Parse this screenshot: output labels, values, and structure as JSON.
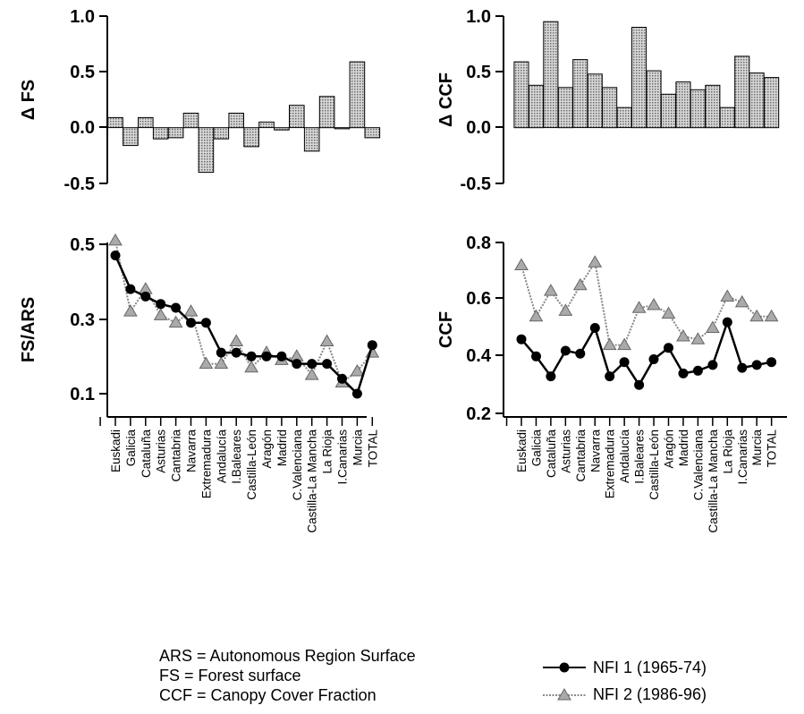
{
  "categories": [
    "Euskadi",
    "Galicia",
    "Cataluña",
    "Asturias",
    "Cantabria",
    "Navarra",
    "Extremadura",
    "Andalucía",
    "I.Baleares",
    "Castilla-León",
    "Aragón",
    "Madrid",
    "C.Valenciana",
    "Castilla-La Mancha",
    "La Rioja",
    "I.Canarias",
    "Murcia",
    "TOTAL"
  ],
  "colors": {
    "ink": "#000000",
    "bar_fill": "#cfcfcf",
    "nfi2_line": "#888888"
  },
  "chart_data": [
    {
      "type": "bar",
      "ylabel": "Δ FS",
      "ylim": [
        -0.5,
        1.0
      ],
      "yticks": [
        "-0.5",
        "0.0",
        "0.5",
        "1.0"
      ],
      "values": [
        0.09,
        -0.16,
        0.09,
        -0.1,
        -0.09,
        0.13,
        -0.4,
        -0.1,
        0.13,
        -0.17,
        0.05,
        -0.02,
        0.2,
        -0.21,
        0.28,
        -0.01,
        0.59,
        -0.09
      ]
    },
    {
      "type": "bar",
      "ylabel": "Δ CCF",
      "ylim": [
        -0.5,
        1.0
      ],
      "yticks": [
        "-0.5",
        "0.0",
        "0.5",
        "1.0"
      ],
      "values": [
        0.59,
        0.38,
        0.95,
        0.36,
        0.61,
        0.48,
        0.36,
        0.18,
        0.9,
        0.51,
        0.3,
        0.41,
        0.34,
        0.38,
        0.18,
        0.64,
        0.49,
        0.45
      ]
    },
    {
      "type": "line",
      "ylabel": "FS/ARS",
      "ylim": [
        0.08,
        0.52
      ],
      "yticks": [
        "0.1",
        "0.3",
        "0.5"
      ],
      "series": [
        {
          "name": "NFI 1 (1965-74)",
          "values": [
            0.47,
            0.38,
            0.36,
            0.34,
            0.33,
            0.29,
            0.29,
            0.21,
            0.21,
            0.2,
            0.2,
            0.2,
            0.18,
            0.18,
            0.18,
            0.14,
            0.1,
            0.23
          ]
        },
        {
          "name": "NFI 2 (1986-96)",
          "values": [
            0.51,
            0.32,
            0.38,
            0.31,
            0.29,
            0.32,
            0.18,
            0.18,
            0.24,
            0.17,
            0.21,
            0.19,
            0.2,
            0.15,
            0.24,
            0.13,
            0.16,
            0.21
          ]
        }
      ]
    },
    {
      "type": "line",
      "ylabel": "CCF",
      "ylim": [
        0.2,
        0.8
      ],
      "yticks": [
        "0.2",
        "0.4",
        "0.6",
        "0.8"
      ],
      "series": [
        {
          "name": "NFI 1 (1965-74)",
          "values": [
            0.46,
            0.4,
            0.33,
            0.42,
            0.41,
            0.5,
            0.33,
            0.38,
            0.3,
            0.39,
            0.43,
            0.34,
            0.35,
            0.37,
            0.52,
            0.36,
            0.37,
            0.38
          ]
        },
        {
          "name": "NFI 2 (1986-96)",
          "values": [
            0.72,
            0.54,
            0.63,
            0.56,
            0.65,
            0.73,
            0.44,
            0.44,
            0.57,
            0.58,
            0.55,
            0.47,
            0.46,
            0.5,
            0.61,
            0.59,
            0.54,
            0.54
          ]
        }
      ]
    }
  ],
  "notes": [
    "ARS = Autonomous Region Surface",
    "FS = Forest surface",
    "CCF = Canopy Cover Fraction"
  ],
  "legend": [
    {
      "label": "NFI 1 (1965-74)"
    },
    {
      "label": "NFI 2 (1986-96)"
    }
  ]
}
